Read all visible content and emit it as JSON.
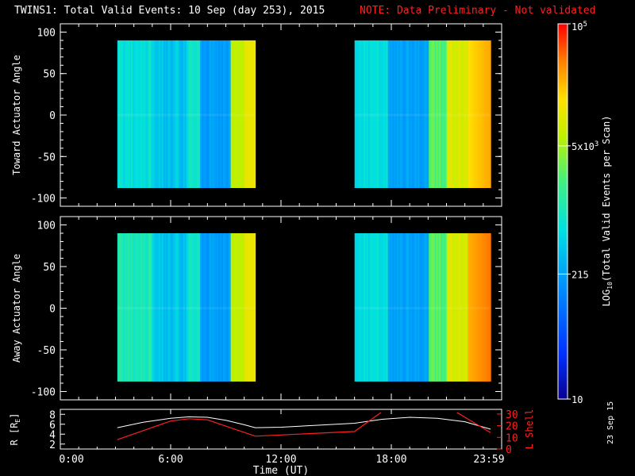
{
  "title_main": "TWINS1: Total Valid Events: 10 Sep (day 253), 2015",
  "title_note": "NOTE: Data Preliminary - Not validated",
  "date_stamp": "23 Sep 15",
  "colors": {
    "note": "#ff2020",
    "r_line": "#ffffff",
    "l_line": "#ff2020",
    "background": "#000000"
  },
  "chart_data": [
    {
      "type": "heatmap",
      "ylabel": "Toward Actuator Angle",
      "ylim": [
        -110,
        110
      ],
      "yticks": [
        100,
        50,
        0,
        -50,
        -100
      ],
      "xlim": [
        0,
        24
      ],
      "data_coverage_hours": [
        [
          3.1,
          10.6
        ],
        [
          16.0,
          23.4
        ]
      ],
      "angle_range": [
        -88,
        90
      ]
    },
    {
      "type": "heatmap",
      "ylabel": "Away Actuator Angle",
      "ylim": [
        -110,
        110
      ],
      "yticks": [
        100,
        50,
        0,
        -50,
        -100
      ],
      "xlim": [
        0,
        24
      ],
      "xticks": [
        "0:00",
        "6:00",
        "12:00",
        "18:00",
        "23:59"
      ],
      "xlabel": "Time (UT)",
      "data_coverage_hours": [
        [
          3.1,
          10.6
        ],
        [
          16.0,
          23.4
        ]
      ],
      "angle_range": [
        -88,
        90
      ]
    },
    {
      "type": "line",
      "ylabel_left": "R [R",
      "ylabel_left_sub": "E",
      "ylabel_left_close": "]",
      "ylabel_right": "L Shell",
      "y_left_ticks": [
        8,
        6,
        4,
        2
      ],
      "y_right_ticks": [
        30,
        20,
        10,
        0
      ],
      "series": [
        {
          "axis": "left",
          "x": [
            3.1,
            4.5,
            6.0,
            7.0,
            8.0,
            9.0,
            10.0,
            10.6,
            12.0,
            14.0,
            16.0,
            17.5,
            19.0,
            20.5,
            22.0,
            23.4
          ],
          "values": [
            5.3,
            6.4,
            7.2,
            7.5,
            7.4,
            6.8,
            5.9,
            5.3,
            5.4,
            5.8,
            6.2,
            7.0,
            7.4,
            7.2,
            6.5,
            5.0
          ]
        },
        {
          "axis": "right",
          "x": [
            3.1,
            6.0,
            7.0,
            8.0,
            10.6,
            16.0,
            17.5,
            21.5,
            23.4
          ],
          "values": [
            8,
            24,
            26,
            25,
            11,
            15,
            32,
            32,
            14
          ]
        }
      ]
    },
    {
      "type": "colorbar",
      "label_pre": "LOG",
      "label_sub": "10",
      "label_post": "(Total Valid Events per Scan)",
      "ticks": [
        {
          "value": 10,
          "label": "10"
        },
        {
          "value": 215,
          "label": "215"
        },
        {
          "value": 5000,
          "label_base": "5x10",
          "label_exp": "3"
        },
        {
          "value": 100000,
          "label_base": "10",
          "label_exp": "5"
        }
      ],
      "range": [
        10,
        100000
      ]
    }
  ]
}
